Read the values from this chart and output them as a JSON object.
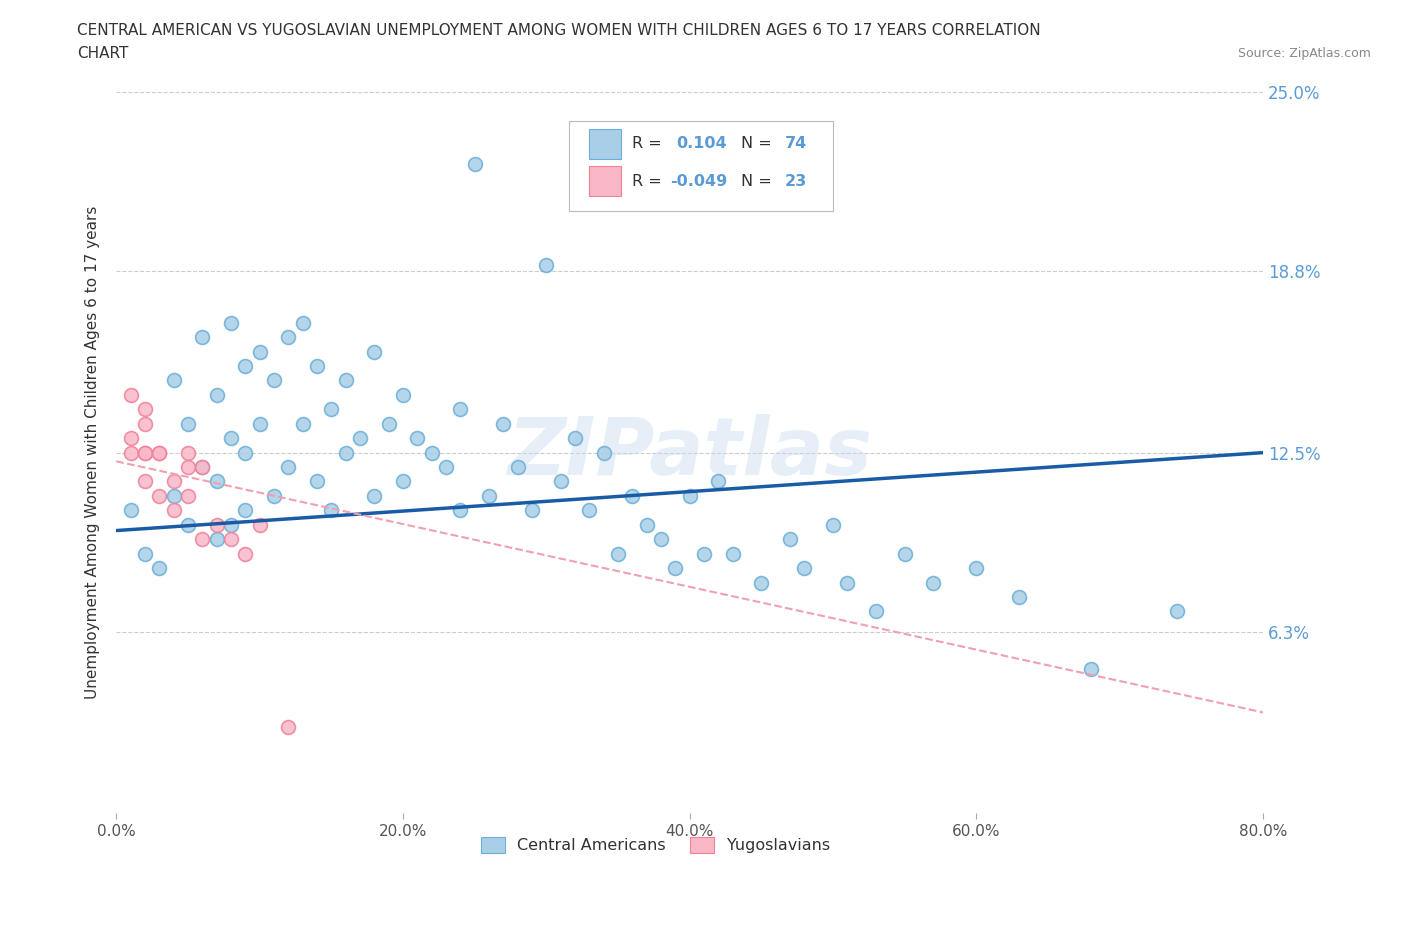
{
  "title_line1": "CENTRAL AMERICAN VS YUGOSLAVIAN UNEMPLOYMENT AMONG WOMEN WITH CHILDREN AGES 6 TO 17 YEARS CORRELATION",
  "title_line2": "CHART",
  "source": "Source: ZipAtlas.com",
  "ylabel": "Unemployment Among Women with Children Ages 6 to 17 years",
  "xlim": [
    0.0,
    80.0
  ],
  "ylim": [
    0.0,
    25.0
  ],
  "xtick_vals": [
    0.0,
    20.0,
    40.0,
    60.0,
    80.0
  ],
  "xtick_labels": [
    "0.0%",
    "20.0%",
    "40.0%",
    "60.0%",
    "80.0%"
  ],
  "ytick_vals": [
    6.3,
    12.5,
    18.8,
    25.0
  ],
  "ytick_labels": [
    "6.3%",
    "12.5%",
    "18.8%",
    "25.0%"
  ],
  "blue_fill": "#A8CEE8",
  "blue_edge": "#6BAED6",
  "pink_fill": "#F9B8C8",
  "pink_edge": "#F08098",
  "blue_line_color": "#1A5BA6",
  "pink_line_color": "#F0A0B0",
  "grid_color": "#CCCCCC",
  "blue_R": 0.104,
  "blue_N": 74,
  "pink_R": -0.049,
  "pink_N": 23,
  "legend_label1": "Central Americans",
  "legend_label2": "Yugoslavians",
  "watermark": "ZIPatlas",
  "blue_trend_x": [
    0,
    80
  ],
  "blue_trend_y": [
    9.8,
    12.5
  ],
  "pink_trend_x": [
    0,
    80
  ],
  "pink_trend_y": [
    12.2,
    3.5
  ]
}
